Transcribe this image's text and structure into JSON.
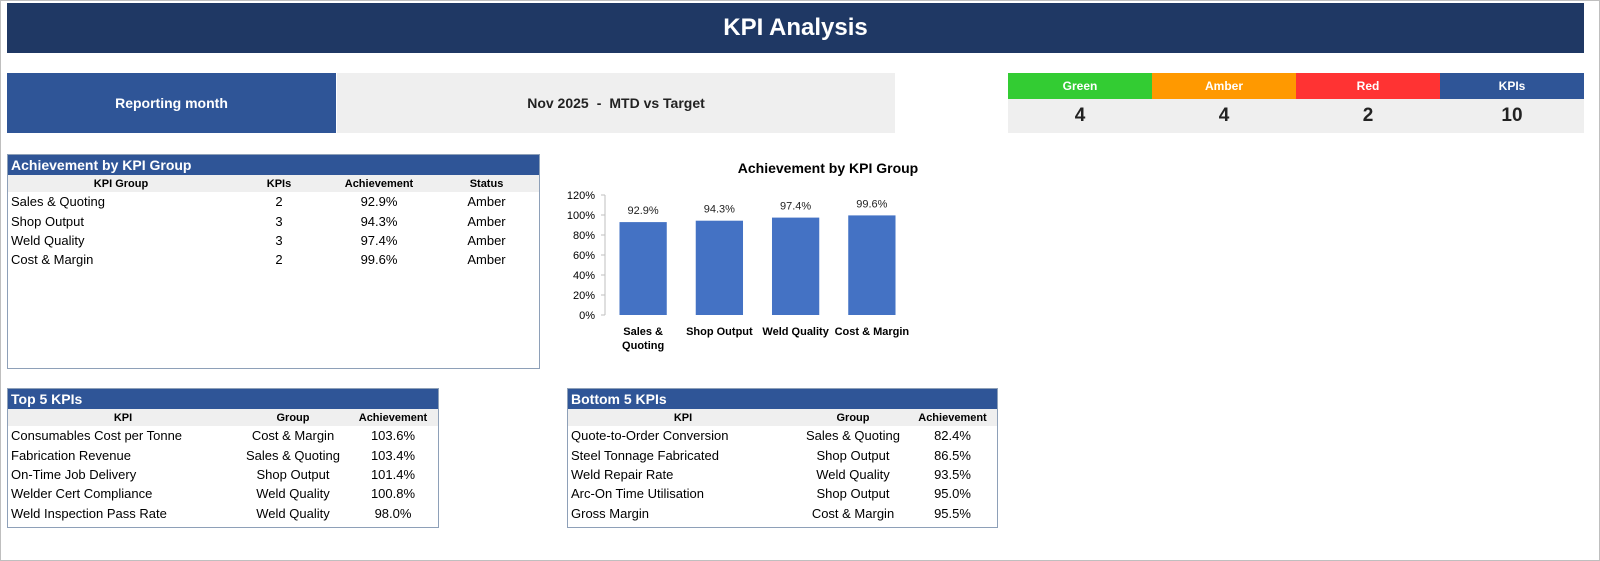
{
  "header": {
    "title": "KPI Analysis"
  },
  "reporting": {
    "label": "Reporting month",
    "month": "Nov 2025",
    "separator": "-",
    "mode": "MTD vs Target"
  },
  "status_summary": [
    {
      "label": "Green",
      "count": "4",
      "color": "#33cc33"
    },
    {
      "label": "Amber",
      "count": "4",
      "color": "#ff9900"
    },
    {
      "label": "Red",
      "count": "2",
      "color": "#ff3333"
    },
    {
      "label": "KPIs",
      "count": "10",
      "color": "#2f5597"
    }
  ],
  "group_table": {
    "title": "Achievement by KPI Group",
    "columns": [
      "KPI Group",
      "KPIs",
      "Achievement",
      "Status"
    ],
    "rows": [
      [
        "Sales & Quoting",
        "2",
        "92.9%",
        "Amber"
      ],
      [
        "Shop Output",
        "3",
        "94.3%",
        "Amber"
      ],
      [
        "Weld Quality",
        "3",
        "97.4%",
        "Amber"
      ],
      [
        "Cost & Margin",
        "2",
        "99.6%",
        "Amber"
      ]
    ]
  },
  "top5": {
    "title": "Top 5 KPIs",
    "columns": [
      "KPI",
      "Group",
      "Achievement"
    ],
    "rows": [
      [
        "Consumables Cost per Tonne",
        "Cost & Margin",
        "103.6%"
      ],
      [
        "Fabrication Revenue",
        "Sales & Quoting",
        "103.4%"
      ],
      [
        "On-Time Job Delivery",
        "Shop Output",
        "101.4%"
      ],
      [
        "Welder Cert Compliance",
        "Weld Quality",
        "100.8%"
      ],
      [
        "Weld Inspection Pass Rate",
        "Weld Quality",
        "98.0%"
      ]
    ]
  },
  "bottom5": {
    "title": "Bottom 5 KPIs",
    "columns": [
      "KPI",
      "Group",
      "Achievement"
    ],
    "rows": [
      [
        "Quote-to-Order Conversion",
        "Sales & Quoting",
        "82.4%"
      ],
      [
        "Steel Tonnage Fabricated",
        "Shop Output",
        "86.5%"
      ],
      [
        "Weld Repair Rate",
        "Weld Quality",
        "93.5%"
      ],
      [
        "Arc-On Time Utilisation",
        "Shop Output",
        "95.0%"
      ],
      [
        "Gross Margin",
        "Cost & Margin",
        "95.5%"
      ]
    ]
  },
  "chart_data": {
    "type": "bar",
    "title": "Achievement by KPI Group",
    "categories": [
      [
        "Sales &",
        "Quoting"
      ],
      [
        "Shop Output"
      ],
      [
        "Weld Quality"
      ],
      [
        "Cost & Margin"
      ]
    ],
    "values": [
      92.9,
      94.3,
      97.4,
      99.6
    ],
    "data_labels": [
      "92.9%",
      "94.3%",
      "97.4%",
      "99.6%"
    ],
    "yticks": [
      "0%",
      "20%",
      "40%",
      "60%",
      "80%",
      "100%",
      "120%"
    ],
    "ylim": [
      0,
      120
    ],
    "bar_color": "#4472c4"
  }
}
